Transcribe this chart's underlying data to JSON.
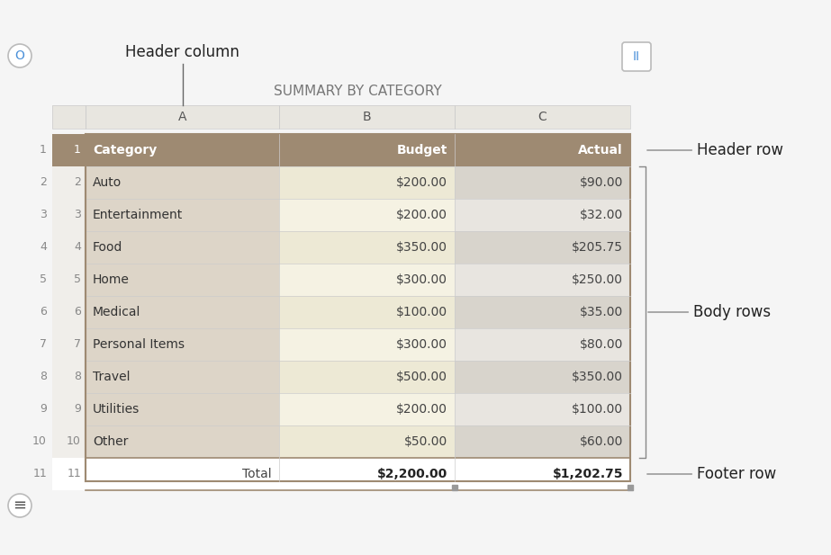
{
  "title": "SUMMARY BY CATEGORY",
  "col_labels": [
    "A",
    "B",
    "C"
  ],
  "header_row": [
    "Category",
    "Budget",
    "Actual"
  ],
  "body_rows": [
    [
      "Auto",
      "$200.00",
      "$90.00"
    ],
    [
      "Entertainment",
      "$200.00",
      "$32.00"
    ],
    [
      "Food",
      "$350.00",
      "$205.75"
    ],
    [
      "Home",
      "$300.00",
      "$250.00"
    ],
    [
      "Medical",
      "$100.00",
      "$35.00"
    ],
    [
      "Personal Items",
      "$300.00",
      "$80.00"
    ],
    [
      "Travel",
      "$500.00",
      "$350.00"
    ],
    [
      "Utilities",
      "$200.00",
      "$100.00"
    ],
    [
      "Other",
      "$50.00",
      "$60.00"
    ]
  ],
  "footer_row": [
    "Total",
    "$2,200.00",
    "$1,202.75"
  ],
  "row_numbers": [
    "1",
    "2",
    "3",
    "4",
    "5",
    "6",
    "7",
    "8",
    "9",
    "10",
    "11"
  ],
  "bg_color": "#f5f5f5",
  "header_col_bg": "#9e8a72",
  "header_text_color": "#ffffff",
  "body_col_a_bg": "#ddd5c8",
  "body_even_b_bg": "#f5f2e3",
  "body_odd_b_bg": "#ede9d5",
  "body_even_c_bg": "#e8e5e0",
  "body_odd_c_bg": "#d8d4cc",
  "footer_bg": "#ffffff",
  "footer_border_color": "#9e8a72",
  "col_header_bg": "#e8e6e0",
  "col_header_text": "#555555",
  "row_num_bg": "#f0eeea",
  "row_num_text": "#888888",
  "table_border": "#9e8a72",
  "title_color": "#777777"
}
